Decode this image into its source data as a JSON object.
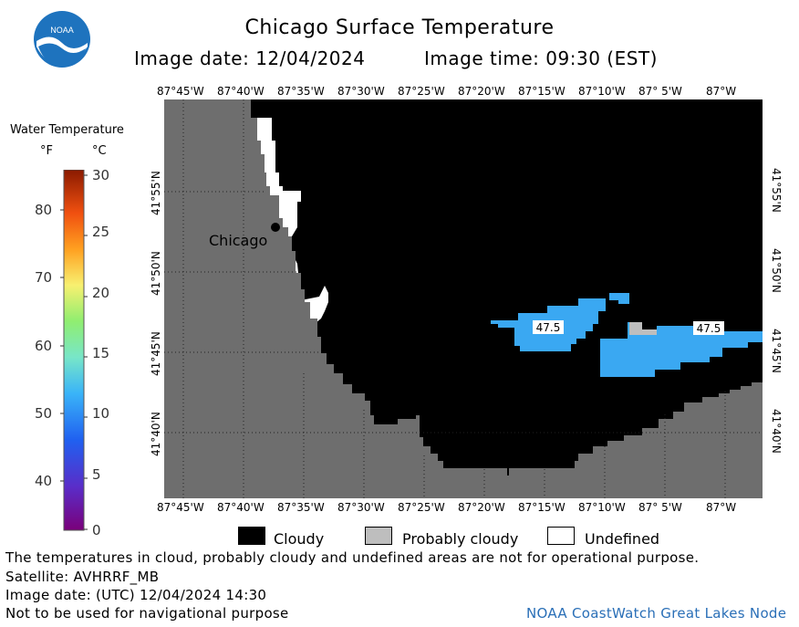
{
  "header": {
    "title": "Chicago Surface Temperature",
    "image_date": "Image date: 12/04/2024",
    "image_time": "Image time: 09:30 (EST)",
    "logo_text": "NOAA"
  },
  "map": {
    "lon_ticks": [
      "87°45'W",
      "87°40'W",
      "87°35'W",
      "87°30'W",
      "87°25'W",
      "87°20'W",
      "87°15'W",
      "87°10'W",
      "87° 5'W",
      "87°W"
    ],
    "lat_ticks": [
      "41°55'N",
      "41°50'N",
      "41°45'N",
      "41°40'N"
    ],
    "city_label": "Chicago",
    "temp_labels": [
      "47.5",
      "47.5"
    ],
    "colors": {
      "land": "#6e6e6e",
      "cloudy": "#000000",
      "probably_cloudy": "#bebebe",
      "undefined": "#ffffff",
      "water_47_5": "#3aa8f2"
    }
  },
  "colorbar": {
    "title": "Water Temperature",
    "unit_f": "°F",
    "unit_c": "°C",
    "f_labels": [
      "80",
      "70",
      "60",
      "50",
      "40"
    ],
    "c_labels": [
      "30",
      "25",
      "20",
      "15",
      "10",
      "5",
      "0"
    ]
  },
  "key": {
    "cloudy": "Cloudy",
    "probably_cloudy": "Probably cloudy",
    "undefined": "Undefined"
  },
  "footer": {
    "disclaimer": "The temperatures in cloud, probably cloudy and undefined areas are not for operational purpose.",
    "satellite": "Satellite: AVHRRF_MB",
    "utc_date": "Image date: (UTC) 12/04/2024  14:30",
    "nav_warning": "Not to be used for navigational purpose",
    "node": "NOAA CoastWatch Great Lakes Node"
  }
}
